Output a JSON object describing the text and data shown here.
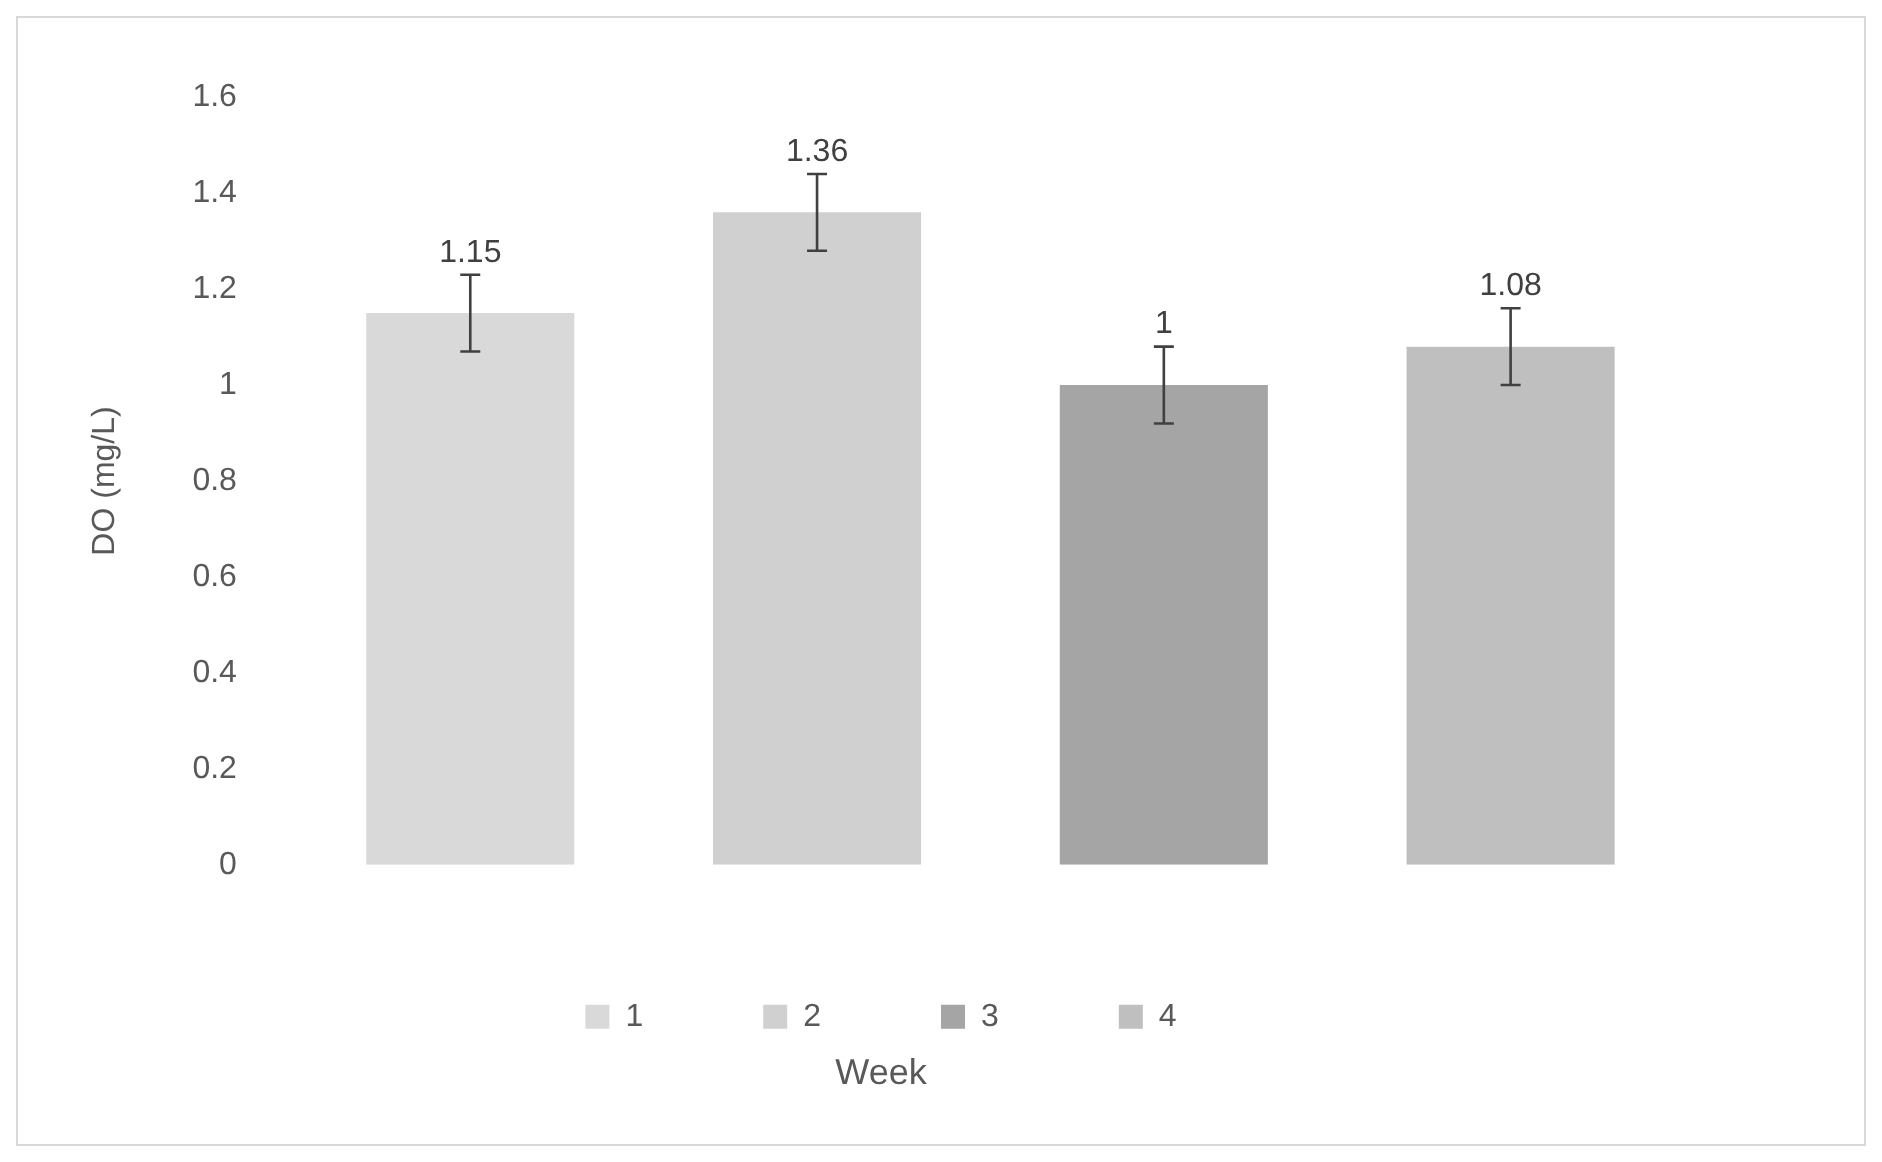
{
  "chart_data": {
    "type": "bar",
    "xlabel": "Week",
    "ylabel": "DO (mg/L)",
    "categories": [
      null,
      null,
      null,
      null
    ],
    "series": [
      {
        "name": "1",
        "color": "#d9d9d9",
        "values": [
          1.15,
          null,
          null,
          null
        ],
        "errors": [
          0.08,
          null,
          null,
          null
        ]
      },
      {
        "name": "2",
        "color": "#d0d0d0",
        "values": [
          null,
          1.36,
          null,
          null
        ],
        "errors": [
          null,
          0.08,
          null,
          null
        ]
      },
      {
        "name": "3",
        "color": "#a5a5a5",
        "values": [
          null,
          null,
          1,
          null
        ],
        "errors": [
          null,
          null,
          0.08,
          null
        ]
      },
      {
        "name": "4",
        "color": "#bfbfbf",
        "values": [
          null,
          null,
          null,
          1.08
        ],
        "errors": [
          null,
          null,
          null,
          0.08
        ]
      }
    ],
    "ylim": [
      0,
      1.6
    ],
    "yticks": [
      0,
      0.2,
      0.4,
      0.6,
      0.8,
      1,
      1.2,
      1.4,
      1.6
    ],
    "stacked": true,
    "data_labels": true,
    "grid": false,
    "legend": "bottom"
  }
}
